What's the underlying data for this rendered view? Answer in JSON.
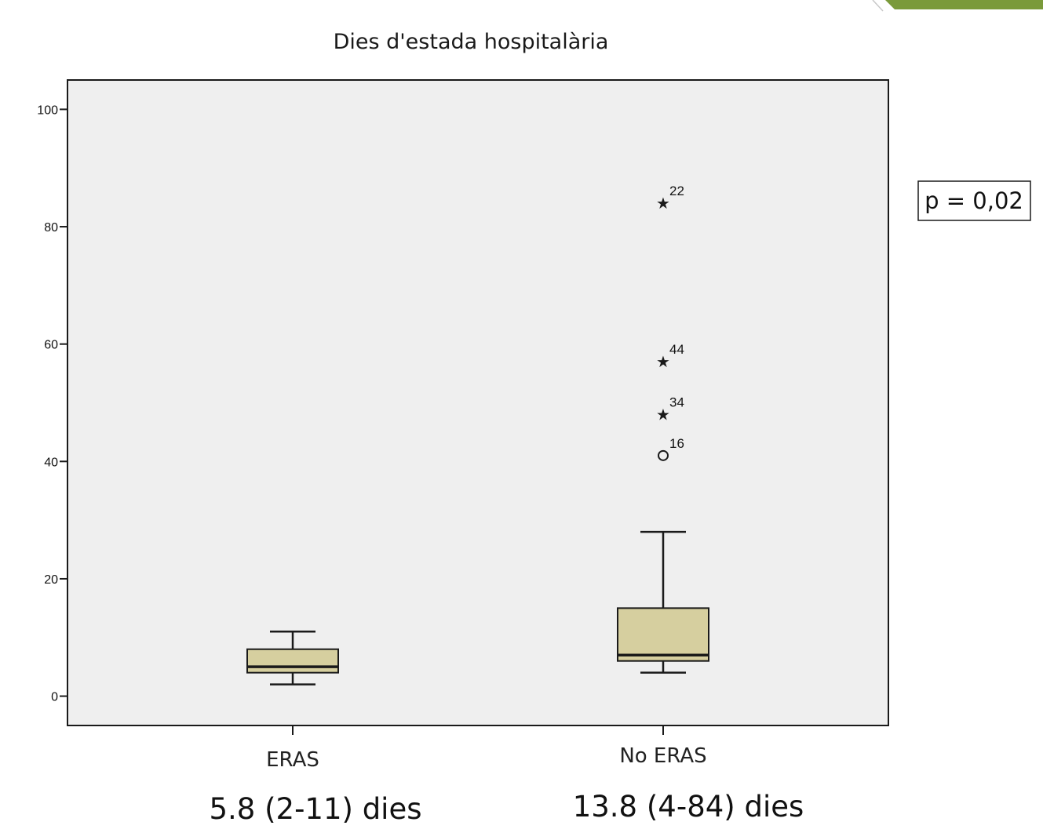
{
  "chart_data": {
    "type": "boxplot",
    "title": "Dies d'estada hospitalària",
    "xlabel": "",
    "ylabel": "",
    "ylim": [
      -5,
      105
    ],
    "y_ticks": [
      0,
      20,
      40,
      60,
      80,
      100
    ],
    "y_tick_labels": [
      "0",
      "20",
      "40",
      "60",
      "80",
      "100"
    ],
    "grid": false,
    "categories": [
      "ERAS",
      "No ERAS"
    ],
    "boxes": [
      {
        "category": "ERAS",
        "whisker_low": 2,
        "q1": 4,
        "median": 5,
        "q3": 8,
        "whisker_high": 11,
        "outliers": [],
        "summary": "5.8 (2-11) dies"
      },
      {
        "category": "No ERAS",
        "whisker_low": 4,
        "q1": 6,
        "median": 7,
        "q3": 15,
        "whisker_high": 28,
        "outliers": [
          {
            "value": 41,
            "label": "16",
            "marker": "circle"
          },
          {
            "value": 48,
            "label": "34",
            "marker": "star"
          },
          {
            "value": 57,
            "label": "44",
            "marker": "star"
          },
          {
            "value": 84,
            "label": "22",
            "marker": "star"
          }
        ],
        "summary": "13.8 (4-84) dies"
      }
    ],
    "annotation": "p = 0,02",
    "colors": {
      "plot_background": "#efefef",
      "box_fill": "#d6cf9f",
      "line": "#1a1a1a",
      "corner_accent": "#7a9a3a"
    }
  }
}
